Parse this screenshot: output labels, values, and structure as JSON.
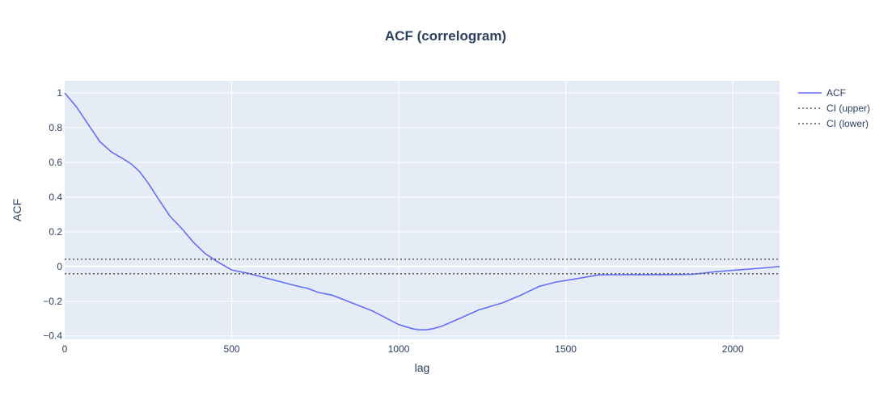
{
  "chart_data": {
    "type": "line",
    "title": "ACF (correlogram)",
    "xlabel": "lag",
    "ylabel": "ACF",
    "xlim": [
      0,
      2140
    ],
    "ylim": [
      -0.42,
      1.07
    ],
    "x_ticks": [
      0,
      500,
      1000,
      1500,
      2000
    ],
    "y_ticks": [
      -0.4,
      -0.2,
      0,
      0.2,
      0.4,
      0.6,
      0.8,
      1
    ],
    "x_tick_labels": [
      "0",
      "500",
      "1000",
      "1500",
      "2000"
    ],
    "y_tick_labels": [
      "−0.4",
      "−0.2",
      "0",
      "0.2",
      "0.4",
      "0.6",
      "0.8",
      "1"
    ],
    "grid": true,
    "legend_position": "top-right",
    "colors": {
      "acf": "#636efa",
      "ci": "#555555",
      "plot_bg": "#e5ecf6",
      "grid": "#ffffff",
      "text": "#2a3f5f"
    },
    "series": [
      {
        "name": "ACF",
        "style": "solid",
        "x": [
          0,
          35,
          70,
          105,
          140,
          175,
          200,
          225,
          250,
          280,
          315,
          350,
          385,
          420,
          455,
          500,
          550,
          600,
          650,
          700,
          725,
          760,
          800,
          860,
          920,
          980,
          1000,
          1040,
          1060,
          1080,
          1100,
          1130,
          1170,
          1240,
          1310,
          1360,
          1420,
          1470,
          1540,
          1600,
          1700,
          1800,
          1880,
          1950,
          2050,
          2140
        ],
        "y": [
          1.0,
          0.92,
          0.82,
          0.72,
          0.66,
          0.62,
          0.59,
          0.545,
          0.48,
          0.39,
          0.29,
          0.22,
          0.14,
          0.075,
          0.03,
          -0.02,
          -0.04,
          -0.065,
          -0.09,
          -0.115,
          -0.125,
          -0.15,
          -0.165,
          -0.21,
          -0.255,
          -0.315,
          -0.335,
          -0.358,
          -0.365,
          -0.365,
          -0.36,
          -0.343,
          -0.31,
          -0.25,
          -0.21,
          -0.17,
          -0.115,
          -0.09,
          -0.068,
          -0.048,
          -0.047,
          -0.047,
          -0.045,
          -0.03,
          -0.015,
          0.0
        ]
      },
      {
        "name": "CI (upper)",
        "style": "dotted",
        "x": [
          0,
          2140
        ],
        "y": [
          0.042,
          0.042
        ]
      },
      {
        "name": "CI (lower)",
        "style": "dotted",
        "x": [
          0,
          2140
        ],
        "y": [
          -0.042,
          -0.042
        ]
      }
    ]
  }
}
